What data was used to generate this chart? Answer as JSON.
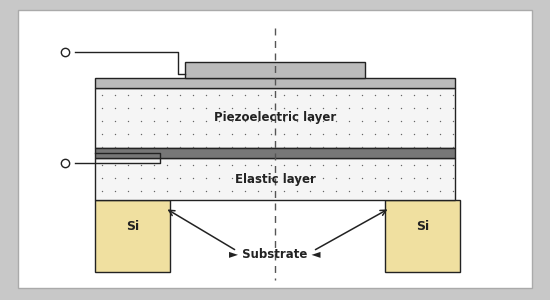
{
  "bg_color": "#c8c8c8",
  "panel_bg": "#ffffff",
  "si_fill": "#f0e0a0",
  "dark": "#222222",
  "mid_gray": "#999999",
  "light_gray": "#cccccc",
  "dot_color": "#666666",
  "piezo_label": "Piezoelectric layer",
  "elastic_label": "Elastic layer",
  "substrate_label": "► Substrate ◄",
  "si_label": "Si",
  "label_fontsize": 8.5,
  "si_fontsize": 9
}
